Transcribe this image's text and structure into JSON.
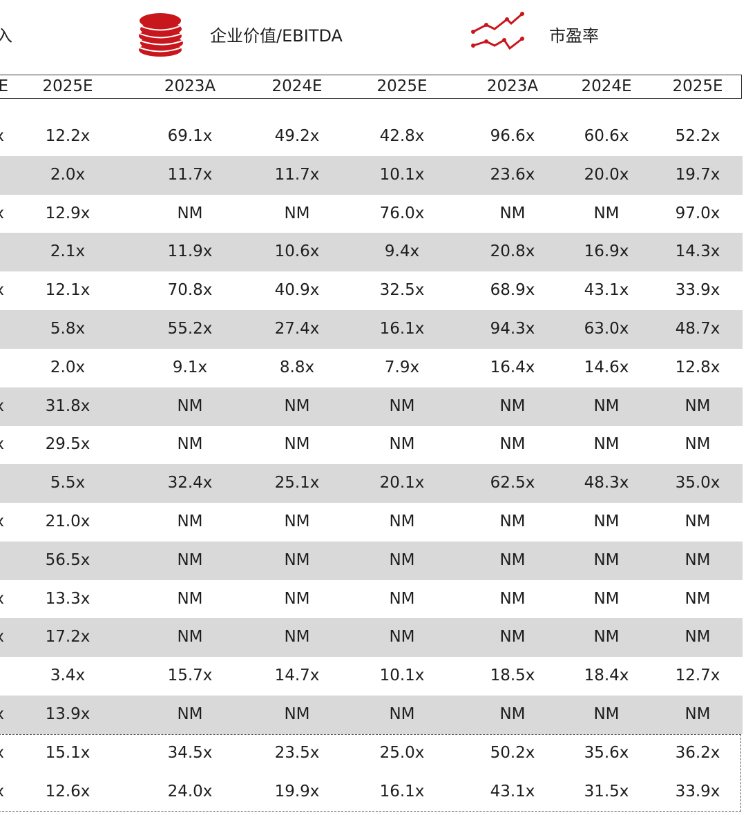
{
  "legend": {
    "left_fragment": "入",
    "ev_ebitda": {
      "label": "企业价值/EBITDA",
      "icon": "coin-stack-icon",
      "color": "#c8161d"
    },
    "pe": {
      "label": "市盈率",
      "icon": "line-chart-icon",
      "color": "#c8161d"
    }
  },
  "header": {
    "columns": [
      "E",
      "2025E",
      "2023A",
      "2024E",
      "2025E",
      "2023A",
      "2024E",
      "2025E"
    ]
  },
  "colors": {
    "stripe": "#d9d9d9",
    "text": "#1e1e1e"
  },
  "rows": [
    [
      "x",
      "12.2x",
      "69.1x",
      "49.2x",
      "42.8x",
      "96.6x",
      "60.6x",
      "52.2x"
    ],
    [
      "",
      "2.0x",
      "11.7x",
      "11.7x",
      "10.1x",
      "23.6x",
      "20.0x",
      "19.7x"
    ],
    [
      "x",
      "12.9x",
      "NM",
      "NM",
      "76.0x",
      "NM",
      "NM",
      "97.0x"
    ],
    [
      "",
      "2.1x",
      "11.9x",
      "10.6x",
      "9.4x",
      "20.8x",
      "16.9x",
      "14.3x"
    ],
    [
      "x",
      "12.1x",
      "70.8x",
      "40.9x",
      "32.5x",
      "68.9x",
      "43.1x",
      "33.9x"
    ],
    [
      "",
      "5.8x",
      "55.2x",
      "27.4x",
      "16.1x",
      "94.3x",
      "63.0x",
      "48.7x"
    ],
    [
      "",
      "2.0x",
      "9.1x",
      "8.8x",
      "7.9x",
      "16.4x",
      "14.6x",
      "12.8x"
    ],
    [
      "x",
      "31.8x",
      "NM",
      "NM",
      "NM",
      "NM",
      "NM",
      "NM"
    ],
    [
      "x",
      "29.5x",
      "NM",
      "NM",
      "NM",
      "NM",
      "NM",
      "NM"
    ],
    [
      "",
      "5.5x",
      "32.4x",
      "25.1x",
      "20.1x",
      "62.5x",
      "48.3x",
      "35.0x"
    ],
    [
      "x",
      "21.0x",
      "NM",
      "NM",
      "NM",
      "NM",
      "NM",
      "NM"
    ],
    [
      "",
      "56.5x",
      "NM",
      "NM",
      "NM",
      "NM",
      "NM",
      "NM"
    ],
    [
      "x",
      "13.3x",
      "NM",
      "NM",
      "NM",
      "NM",
      "NM",
      "NM"
    ],
    [
      "x",
      "17.2x",
      "NM",
      "NM",
      "NM",
      "NM",
      "NM",
      "NM"
    ],
    [
      "",
      "3.4x",
      "15.7x",
      "14.7x",
      "10.1x",
      "18.5x",
      "18.4x",
      "12.7x"
    ],
    [
      "x",
      "13.9x",
      "NM",
      "NM",
      "NM",
      "NM",
      "NM",
      "NM"
    ],
    [
      "x",
      "15.1x",
      "34.5x",
      "23.5x",
      "25.0x",
      "50.2x",
      "35.6x",
      "36.2x"
    ],
    [
      "x",
      "12.6x",
      "24.0x",
      "19.9x",
      "16.1x",
      "43.1x",
      "31.5x",
      "33.9x"
    ]
  ]
}
